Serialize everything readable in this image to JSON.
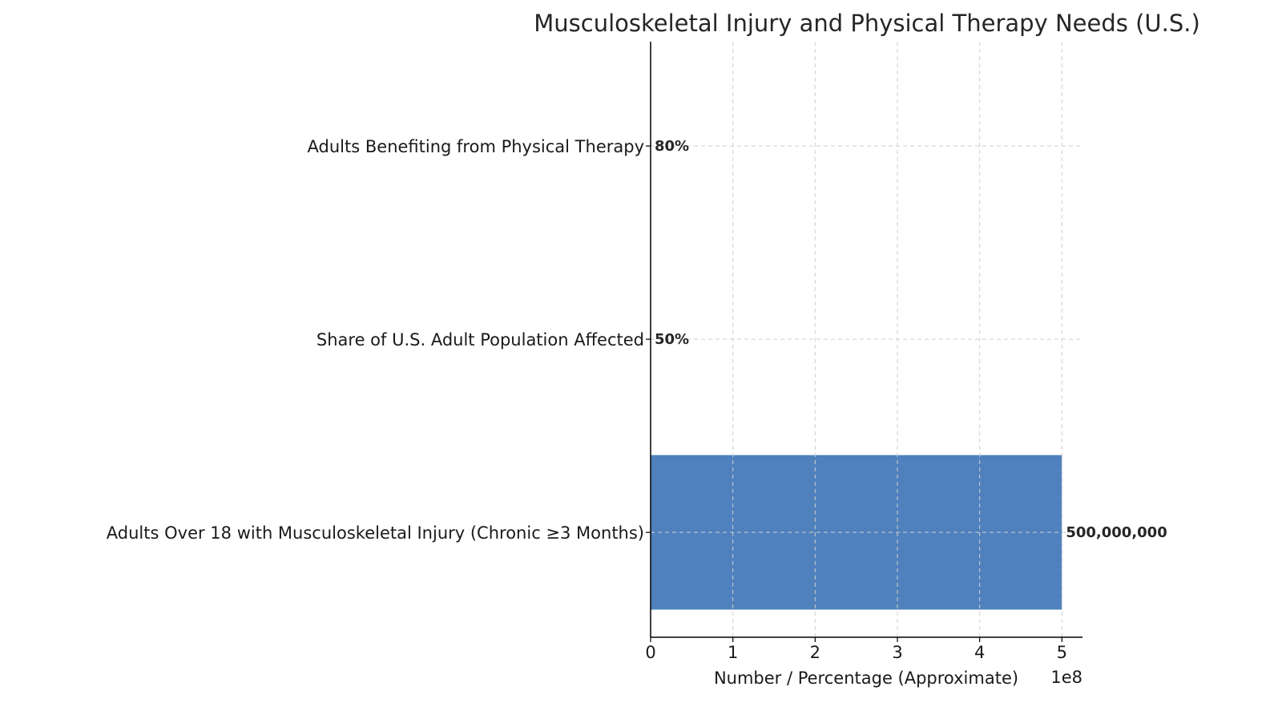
{
  "chart_data": {
    "type": "bar",
    "orientation": "horizontal",
    "title": "Musculoskeletal Injury and Physical Therapy Needs (U.S.)",
    "xlabel": "Number / Percentage (Approximate)",
    "x_offset_text": "1e8",
    "ylabel": "",
    "categories": [
      "Adults Over 18 with Musculoskeletal Injury (Chronic ≥3 Months)",
      "Share of U.S. Adult Population Affected",
      "Adults Benefiting from Physical Therapy"
    ],
    "values": [
      500000000,
      50,
      80
    ],
    "data_labels": [
      "500,000,000",
      "50%",
      "80%"
    ],
    "xlim": [
      0,
      525000000
    ],
    "xticks": [
      0,
      100000000,
      200000000,
      300000000,
      400000000,
      500000000
    ],
    "xtick_labels": [
      "0",
      "1",
      "2",
      "3",
      "4",
      "5"
    ],
    "grid": true,
    "bar_color": "#4f81bd"
  }
}
